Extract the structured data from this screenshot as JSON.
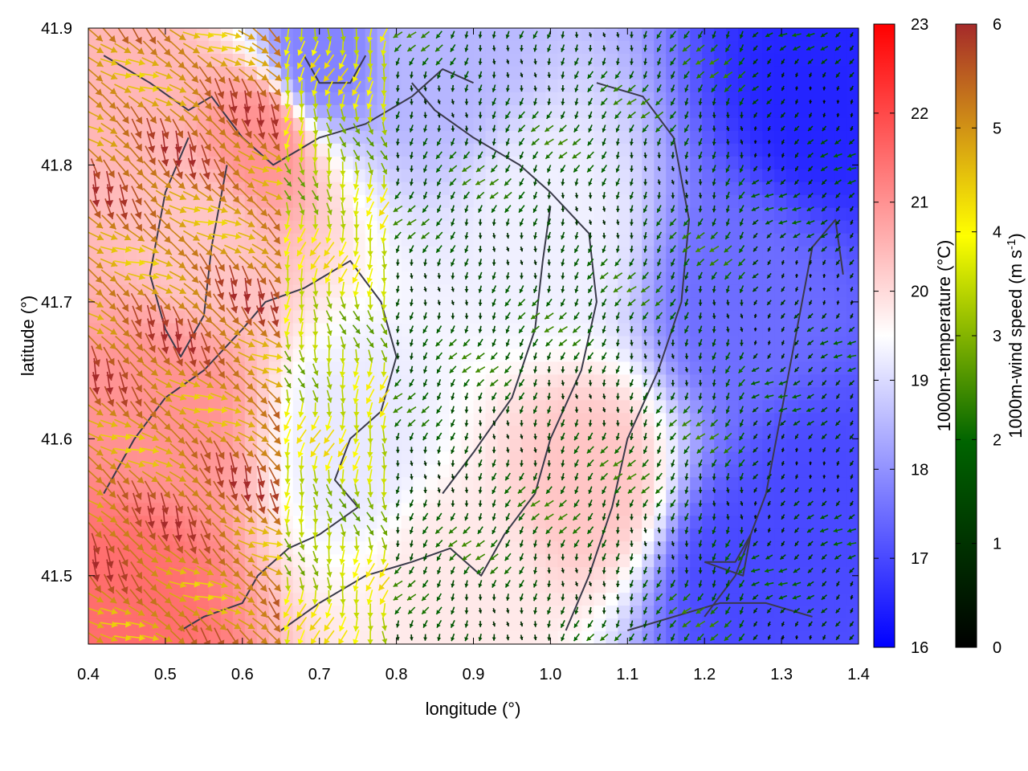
{
  "chart_data": {
    "type": "heatmap",
    "title": "",
    "xlabel": "longitude (°)",
    "ylabel": "latitude (°)",
    "xlim": [
      0.4,
      1.4
    ],
    "ylim": [
      41.45,
      41.9
    ],
    "x_ticks": [
      "0.4",
      "0.5",
      "0.6",
      "0.7",
      "0.8",
      "0.9",
      "1.0",
      "1.1",
      "1.2",
      "1.3",
      "1.4"
    ],
    "y_ticks": [
      "41.5",
      "41.6",
      "41.7",
      "41.8",
      "41.9"
    ],
    "grid": false,
    "temperature_colorbar": {
      "label": "1000m-temperature (°C)",
      "range": [
        16,
        23
      ],
      "ticks": [
        "16",
        "17",
        "18",
        "19",
        "20",
        "21",
        "22",
        "23"
      ],
      "colors": [
        "#0000ff",
        "#ffffff",
        "#ff0000"
      ]
    },
    "wind_colorbar": {
      "label_main": "1000m-wind speed (m s",
      "label_sup": "-1",
      "label_end": ")",
      "range": [
        0,
        6
      ],
      "ticks": [
        "0",
        "1",
        "2",
        "3",
        "4",
        "5",
        "6"
      ],
      "colors": [
        "#000000",
        "#006400",
        "#ffff00",
        "#a52a2a"
      ]
    },
    "temperature_field": {
      "description_points": [
        {
          "lon": 0.45,
          "lat": 41.48,
          "temp": 21.5
        },
        {
          "lon": 0.5,
          "lat": 41.62,
          "temp": 21.0
        },
        {
          "lon": 0.55,
          "lat": 41.75,
          "temp": 20.3
        },
        {
          "lon": 0.45,
          "lat": 41.85,
          "temp": 20.5
        },
        {
          "lon": 0.62,
          "lat": 41.82,
          "temp": 21.0
        },
        {
          "lon": 0.75,
          "lat": 41.6,
          "temp": 19.2
        },
        {
          "lon": 0.88,
          "lat": 41.5,
          "temp": 19.8
        },
        {
          "lon": 1.05,
          "lat": 41.57,
          "temp": 20.3
        },
        {
          "lon": 1.0,
          "lat": 41.75,
          "temp": 19.3
        },
        {
          "lon": 0.85,
          "lat": 41.88,
          "temp": 18.5
        },
        {
          "lon": 1.25,
          "lat": 41.7,
          "temp": 17.5
        },
        {
          "lon": 1.35,
          "lat": 41.85,
          "temp": 16.5
        },
        {
          "lon": 1.35,
          "lat": 41.55,
          "temp": 17.0
        },
        {
          "lon": 1.25,
          "lat": 41.5,
          "temp": 17.0
        },
        {
          "lon": 0.7,
          "lat": 41.88,
          "temp": 17.8
        }
      ]
    },
    "wind_regions": [
      {
        "region": "west",
        "lon_max": 0.65,
        "speed": 5.2,
        "direction_deg": 135
      },
      {
        "region": "central-west",
        "lon_min": 0.65,
        "lon_max": 0.8,
        "speed": 3.5,
        "direction_deg": 180
      },
      {
        "region": "central",
        "lon_min": 0.8,
        "lon_max": 1.25,
        "speed": 1.6,
        "direction_deg": 200
      },
      {
        "region": "east",
        "lon_min": 1.25,
        "speed": 1.2,
        "direction_deg": 220
      }
    ]
  },
  "colors": {
    "axis": "#000000",
    "coastline": "#3a3a4a"
  }
}
